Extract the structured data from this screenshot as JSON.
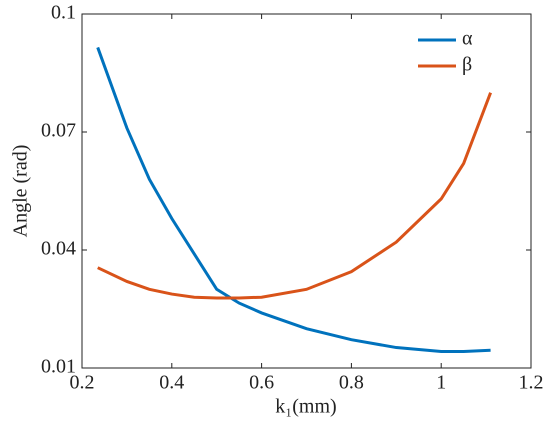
{
  "chart_data": {
    "type": "line",
    "xlabel": "k₁(mm)",
    "ylabel": "Angle (rad)",
    "xlim": [
      0.2,
      1.2
    ],
    "xticks": [
      0.2,
      0.4,
      0.6,
      0.8,
      1,
      1.2
    ],
    "ylim": [
      0.01,
      0.1
    ],
    "yticks": [
      0.01,
      0.04,
      0.07,
      0.1
    ],
    "legend": "upper-right",
    "x": [
      0.235,
      0.3,
      0.35,
      0.4,
      0.45,
      0.5,
      0.55,
      0.6,
      0.7,
      0.8,
      0.9,
      1.0,
      1.05,
      1.11
    ],
    "series": [
      {
        "name": "α",
        "color": "#0072bd",
        "values": [
          0.0915,
          0.071,
          0.058,
          0.048,
          0.039,
          0.03,
          0.0265,
          0.024,
          0.02,
          0.0172,
          0.0152,
          0.0142,
          0.0142,
          0.0145
        ]
      },
      {
        "name": "β",
        "color": "#d95319",
        "values": [
          0.0355,
          0.032,
          0.03,
          0.0288,
          0.028,
          0.0278,
          0.0278,
          0.028,
          0.03,
          0.0345,
          0.042,
          0.053,
          0.062,
          0.08
        ]
      }
    ]
  }
}
